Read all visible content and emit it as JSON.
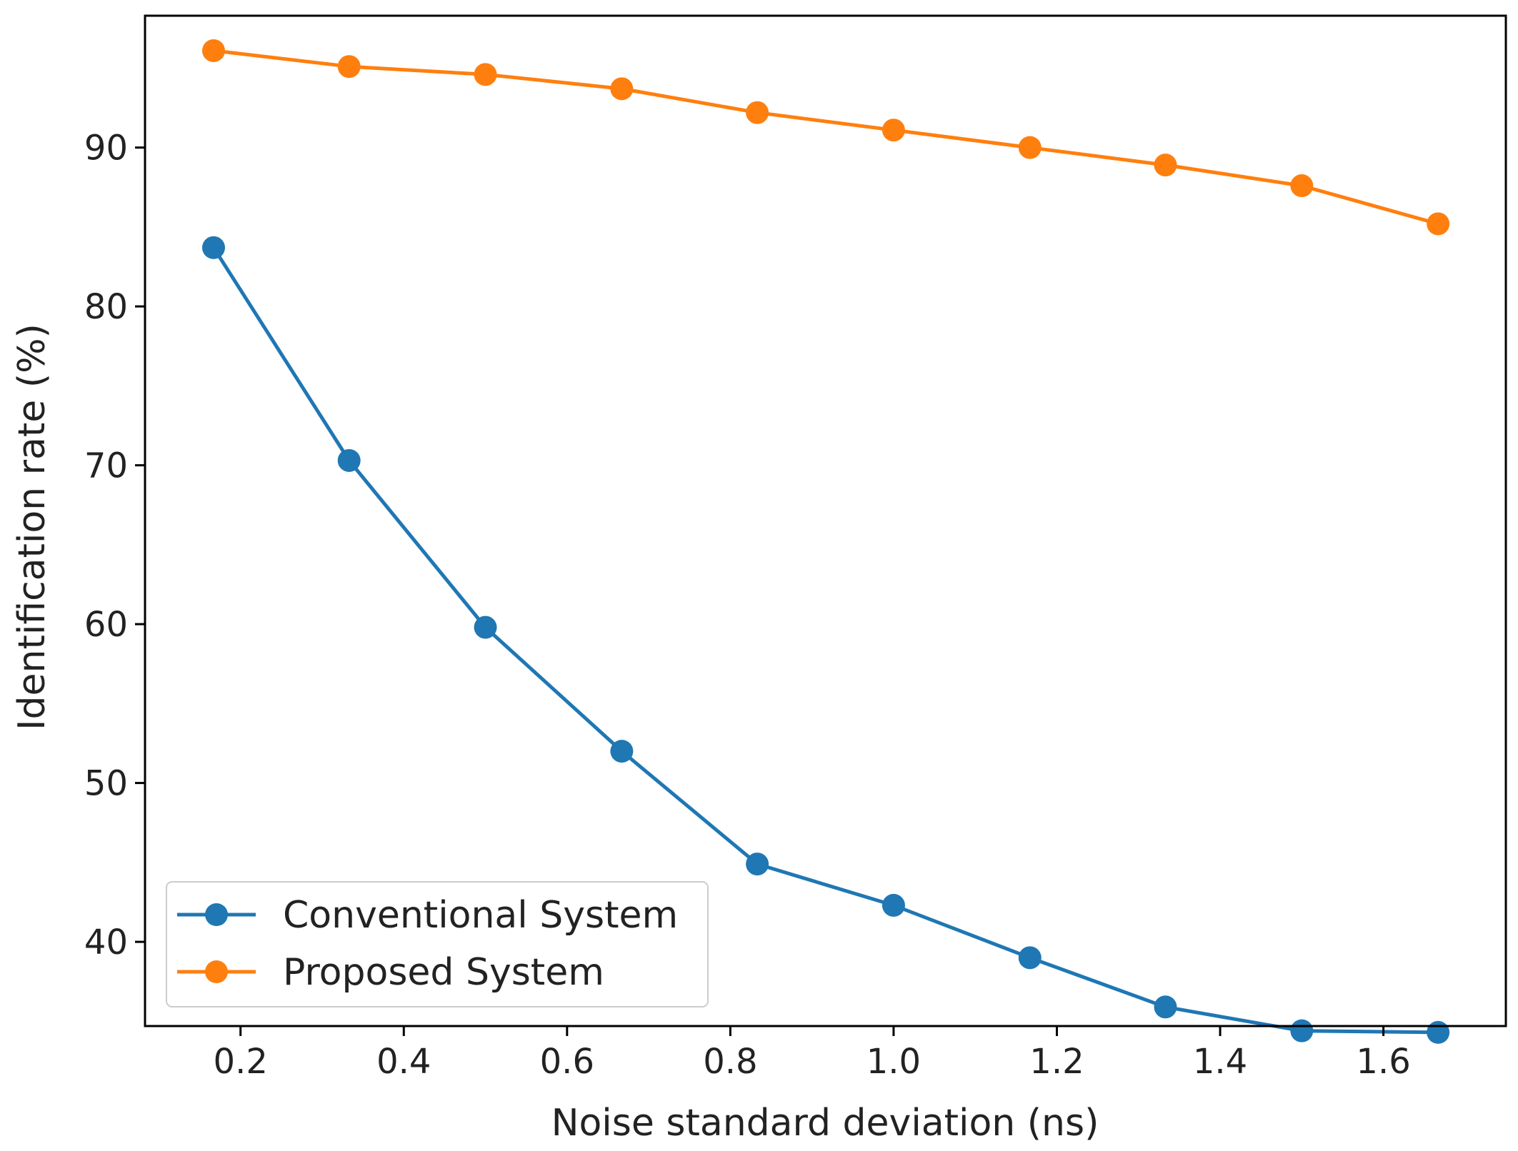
{
  "chart_data": {
    "type": "line",
    "title": "",
    "xlabel": "Noise standard deviation (ns)",
    "ylabel": "Identification rate (%)",
    "xlim": [
      0.083,
      1.75
    ],
    "ylim": [
      34.7,
      98.3
    ],
    "x_ticks": [
      "0.2",
      "0.4",
      "0.6",
      "0.8",
      "1.0",
      "1.2",
      "1.4",
      "1.6"
    ],
    "x_tick_values": [
      0.2,
      0.4,
      0.6,
      0.8,
      1.0,
      1.2,
      1.4,
      1.6
    ],
    "y_ticks": [
      "40",
      "50",
      "60",
      "70",
      "80",
      "90"
    ],
    "y_tick_values": [
      40,
      50,
      60,
      70,
      80,
      90
    ],
    "grid": false,
    "legend_position": "lower-left",
    "x": [
      0.167,
      0.333,
      0.5,
      0.667,
      0.833,
      1.0,
      1.167,
      1.333,
      1.5,
      1.667
    ],
    "series": [
      {
        "name": "Conventional System",
        "color": "#1f77b4",
        "values": [
          83.7,
          70.3,
          59.8,
          52.0,
          44.9,
          42.3,
          39.0,
          35.9,
          34.4,
          34.3
        ]
      },
      {
        "name": "Proposed System",
        "color": "#ff7f0e",
        "values": [
          96.1,
          95.1,
          94.6,
          93.7,
          92.2,
          91.1,
          90.0,
          88.9,
          87.6,
          85.2
        ]
      }
    ]
  }
}
